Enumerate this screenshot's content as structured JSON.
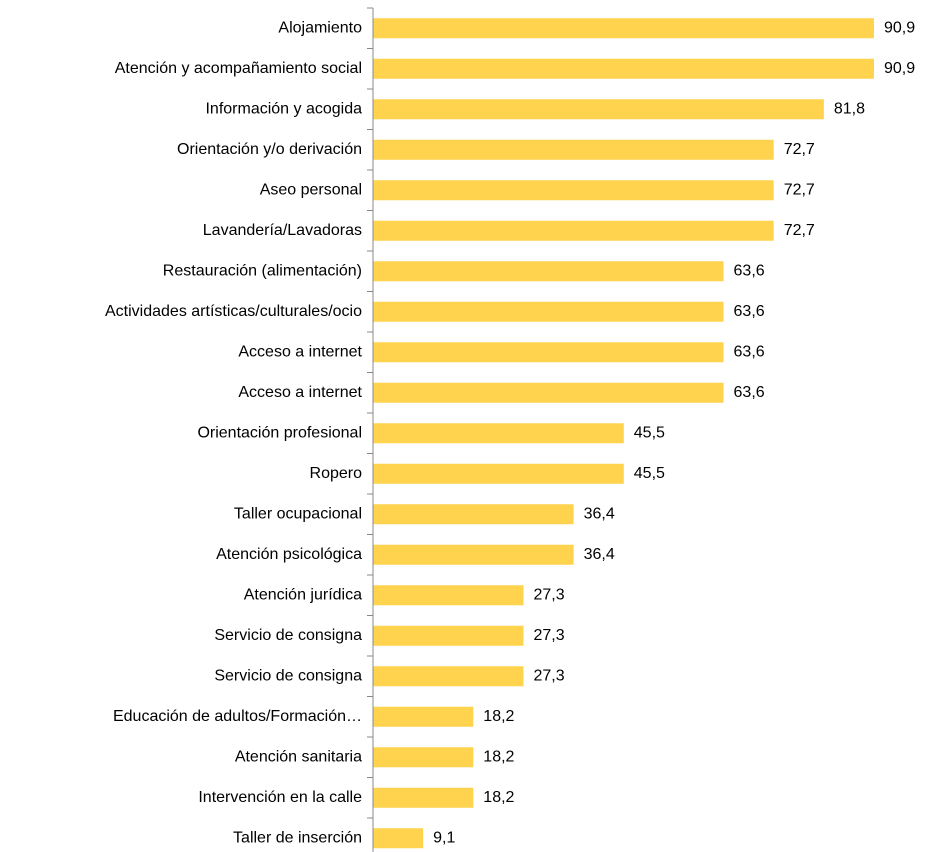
{
  "chart_data": {
    "type": "barh",
    "categories": [
      "Alojamiento",
      "Atención y acompañamiento social",
      "Información y acogida",
      "Orientación y/o derivación",
      "Aseo personal",
      "Lavandería/Lavadoras",
      "Restauración (alimentación)",
      "Actividades artísticas/culturales/ocio",
      "Acceso a internet",
      "Acceso a internet",
      "Orientación profesional",
      "Ropero",
      "Taller ocupacional",
      "Atención psicológica",
      "Atención jurídica",
      "Servicio de consigna",
      "Servicio de consigna",
      "Educación de adultos/Formación…",
      "Atención sanitaria",
      "Intervención en la calle",
      "Taller de inserción"
    ],
    "values": [
      90.9,
      90.9,
      81.8,
      72.7,
      72.7,
      72.7,
      63.6,
      63.6,
      63.6,
      63.6,
      45.5,
      45.5,
      36.4,
      36.4,
      27.3,
      27.3,
      27.3,
      18.2,
      18.2,
      18.2,
      9.1
    ],
    "value_labels": [
      "90,9",
      "90,9",
      "81,8",
      "72,7",
      "72,7",
      "72,7",
      "63,6",
      "63,6",
      "63,6",
      "63,6",
      "45,5",
      "45,5",
      "36,4",
      "36,4",
      "27,3",
      "27,3",
      "27,3",
      "18,2",
      "18,2",
      "18,2",
      "9,1"
    ],
    "color": "#FFD34E"
  }
}
